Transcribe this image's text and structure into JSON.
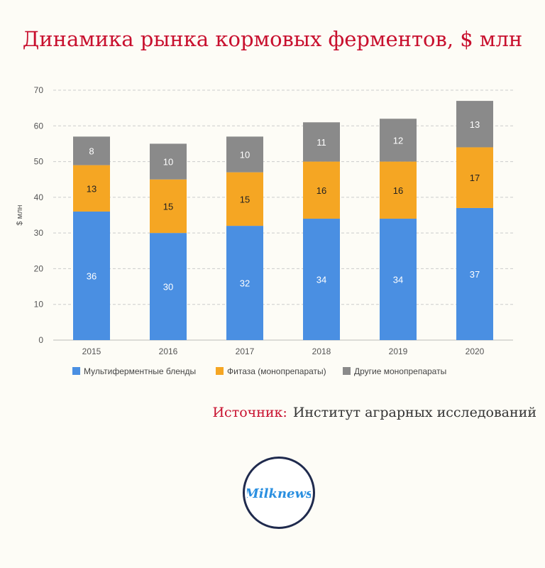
{
  "title": "Динамика рынка кормовых ферментов, $ млн",
  "source": {
    "label": "Источник:",
    "value": "Институт аграрных исследований"
  },
  "logo": {
    "text": "Milknews"
  },
  "colors": {
    "multi": "#4a8fe2",
    "phytase": "#f5a623",
    "other": "#8a8a8a",
    "title": "#c8102e"
  },
  "chart_data": {
    "type": "bar",
    "stacked": true,
    "categories": [
      "2015",
      "2016",
      "2017",
      "2018",
      "2019",
      "2020"
    ],
    "series": [
      {
        "name": "Мультиферментные бленды",
        "values": [
          36,
          30,
          32,
          34,
          34,
          37
        ],
        "color": "#4a8fe2"
      },
      {
        "name": "Фитаза (монопрепараты)",
        "values": [
          13,
          15,
          15,
          16,
          16,
          17
        ],
        "color": "#f5a623"
      },
      {
        "name": "Другие монопрепараты",
        "values": [
          8,
          10,
          10,
          11,
          12,
          13
        ],
        "color": "#8a8a8a"
      }
    ],
    "xlabel": "",
    "ylabel": "$ млн",
    "ylim": [
      0,
      70
    ],
    "yticks": [
      0,
      10,
      20,
      30,
      40,
      50,
      60,
      70
    ],
    "grid": true,
    "legend": "bottom"
  }
}
